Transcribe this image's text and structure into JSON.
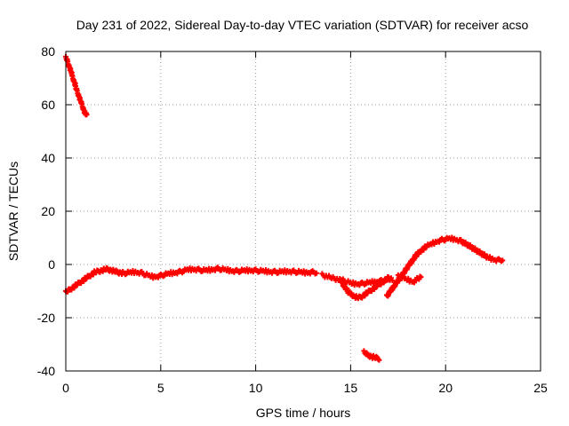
{
  "chart_data": {
    "type": "scatter",
    "title": "Day 231 of 2022, Sidereal Day-to-day VTEC variation (SDTVAR) for receiver acso",
    "xlabel": "GPS time / hours",
    "ylabel": "SDTVAR / TECUs",
    "xlim": [
      0,
      25
    ],
    "ylim": [
      -40,
      80
    ],
    "xticks": [
      0,
      5,
      10,
      15,
      20,
      25
    ],
    "yticks": [
      -40,
      -20,
      0,
      20,
      40,
      60,
      80
    ],
    "grid": true,
    "marker": "+",
    "colors": {
      "series": "#ff0000",
      "axes": "#000000",
      "grid": "#a0a0a0",
      "background": "#ffffff"
    },
    "series": [
      {
        "name": "SDTVAR",
        "segments": [
          {
            "x": [
              0.0,
              0.05,
              0.1,
              0.15,
              0.2,
              0.25,
              0.3,
              0.35,
              0.4,
              0.45,
              0.5,
              0.55,
              0.6,
              0.65,
              0.7,
              0.75,
              0.8,
              0.85,
              0.9,
              0.95,
              1.0,
              1.05,
              1.1
            ],
            "y": [
              77.5,
              77.0,
              76.0,
              75.0,
              74.0,
              73.0,
              72.0,
              70.5,
              69.5,
              68.5,
              67.5,
              66.0,
              65.0,
              64.0,
              63.0,
              62.0,
              61.0,
              60.0,
              59.0,
              58.0,
              57.0,
              56.5,
              56.0
            ]
          },
          {
            "x": [
              0.0,
              0.1,
              0.2,
              0.3,
              0.4,
              0.5,
              0.6,
              0.7,
              0.8,
              0.9,
              1.0,
              1.1,
              1.2,
              1.3,
              1.4,
              1.5,
              1.6,
              1.7,
              1.8,
              1.9,
              2.0,
              2.1,
              2.2,
              2.3,
              2.4,
              2.5,
              2.6,
              2.7,
              2.8,
              2.9,
              3.0,
              3.2,
              3.4,
              3.6,
              3.8,
              4.0,
              4.2,
              4.4,
              4.6,
              4.8,
              5.0,
              5.2,
              5.4,
              5.6,
              5.8,
              6.0,
              6.2,
              6.4,
              6.6,
              6.8,
              7.0,
              7.2,
              7.4,
              7.6,
              7.8,
              8.0,
              8.2,
              8.4,
              8.6,
              8.8,
              9.0,
              9.2,
              9.4,
              9.6,
              9.8,
              10.0,
              10.2,
              10.4,
              10.6,
              10.8,
              11.0,
              11.2,
              11.4,
              11.6,
              11.8,
              12.0,
              12.2,
              12.4,
              12.6,
              12.8,
              13.0,
              13.2
            ],
            "y": [
              -10.5,
              -10.0,
              -9.5,
              -9.0,
              -8.5,
              -8.0,
              -7.5,
              -7.0,
              -6.5,
              -6.0,
              -5.5,
              -5.0,
              -4.5,
              -4.0,
              -3.5,
              -3.0,
              -2.8,
              -2.6,
              -2.4,
              -2.2,
              -2.0,
              -1.8,
              -1.8,
              -2.0,
              -2.2,
              -2.4,
              -2.6,
              -2.8,
              -3.0,
              -3.1,
              -3.2,
              -3.2,
              -3.0,
              -2.8,
              -3.0,
              -3.2,
              -3.8,
              -4.3,
              -4.6,
              -4.5,
              -4.2,
              -3.8,
              -3.5,
              -3.2,
              -3.0,
              -2.8,
              -2.4,
              -2.0,
              -1.8,
              -1.8,
              -2.0,
              -2.2,
              -2.2,
              -2.0,
              -1.8,
              -1.6,
              -1.8,
              -2.0,
              -2.2,
              -2.4,
              -2.5,
              -2.4,
              -2.3,
              -2.2,
              -2.2,
              -2.3,
              -2.4,
              -2.5,
              -2.6,
              -2.7,
              -2.8,
              -2.8,
              -2.7,
              -2.6,
              -2.6,
              -2.7,
              -2.8,
              -2.9,
              -3.0,
              -3.0,
              -2.9,
              -3.0
            ]
          },
          {
            "x": [
              13.5,
              14.0,
              14.5,
              14.6,
              14.7,
              14.8,
              14.9,
              15.0,
              15.1,
              15.2,
              15.3,
              15.4,
              15.5,
              15.6,
              15.7,
              15.8,
              15.9,
              16.0,
              16.1,
              16.2,
              16.3,
              16.4,
              16.5,
              16.6,
              16.7,
              16.8,
              16.9,
              17.0
            ],
            "y": [
              -4.0,
              -5.0,
              -6.0,
              -7.5,
              -8.5,
              -9.5,
              -10.5,
              -11.0,
              -11.5,
              -12.0,
              -12.3,
              -12.5,
              -12.3,
              -12.0,
              -11.5,
              -11.0,
              -10.5,
              -10.0,
              -9.5,
              -9.0,
              -8.5,
              -8.0,
              -7.5,
              -7.0,
              -6.5,
              -6.0,
              -5.5,
              -5.0
            ]
          },
          {
            "x": [
              14.6,
              14.8,
              15.0,
              15.2,
              15.4,
              15.6,
              15.8,
              16.0,
              16.2,
              16.4,
              16.6,
              16.8,
              17.0,
              17.2
            ],
            "y": [
              -6.0,
              -6.5,
              -7.0,
              -7.2,
              -7.3,
              -7.2,
              -7.0,
              -6.8,
              -6.6,
              -6.4,
              -6.2,
              -6.0,
              -5.8,
              -5.5
            ]
          },
          {
            "x": [
              15.7,
              15.8,
              15.9,
              16.0,
              16.1,
              16.2,
              16.3,
              16.4,
              16.5
            ],
            "y": [
              -33.0,
              -33.5,
              -34.0,
              -34.3,
              -34.6,
              -34.8,
              -35.0,
              -35.2,
              -35.4
            ]
          },
          {
            "x": [
              16.9,
              17.0,
              17.1,
              17.2,
              17.3,
              17.4,
              17.5,
              17.6,
              17.7,
              17.8,
              17.9,
              18.0,
              18.1,
              18.2,
              18.3,
              18.4,
              18.5,
              18.6,
              18.7,
              18.8,
              18.9,
              19.0,
              19.2,
              19.4,
              19.6,
              19.8,
              20.0,
              20.2,
              20.4,
              20.6,
              20.8,
              21.0,
              21.2,
              21.4,
              21.6,
              21.8,
              22.0,
              22.2,
              22.4,
              22.6,
              22.8,
              23.0
            ],
            "y": [
              -12.0,
              -11.0,
              -10.0,
              -9.0,
              -8.0,
              -7.0,
              -6.0,
              -5.0,
              -4.0,
              -3.0,
              -2.0,
              -1.0,
              0.0,
              1.0,
              2.0,
              3.0,
              3.8,
              4.5,
              5.2,
              5.8,
              6.3,
              6.8,
              7.5,
              8.2,
              8.8,
              9.2,
              9.5,
              9.7,
              9.6,
              9.3,
              8.8,
              8.0,
              7.2,
              6.3,
              5.4,
              4.5,
              3.6,
              2.8,
              2.2,
              1.8,
              1.6,
              1.8
            ]
          },
          {
            "x": [
              17.5,
              17.7,
              17.9,
              18.1,
              18.3,
              18.5,
              18.7
            ],
            "y": [
              -4.5,
              -5.0,
              -5.5,
              -6.0,
              -6.5,
              -5.5,
              -4.5
            ]
          }
        ]
      }
    ]
  }
}
